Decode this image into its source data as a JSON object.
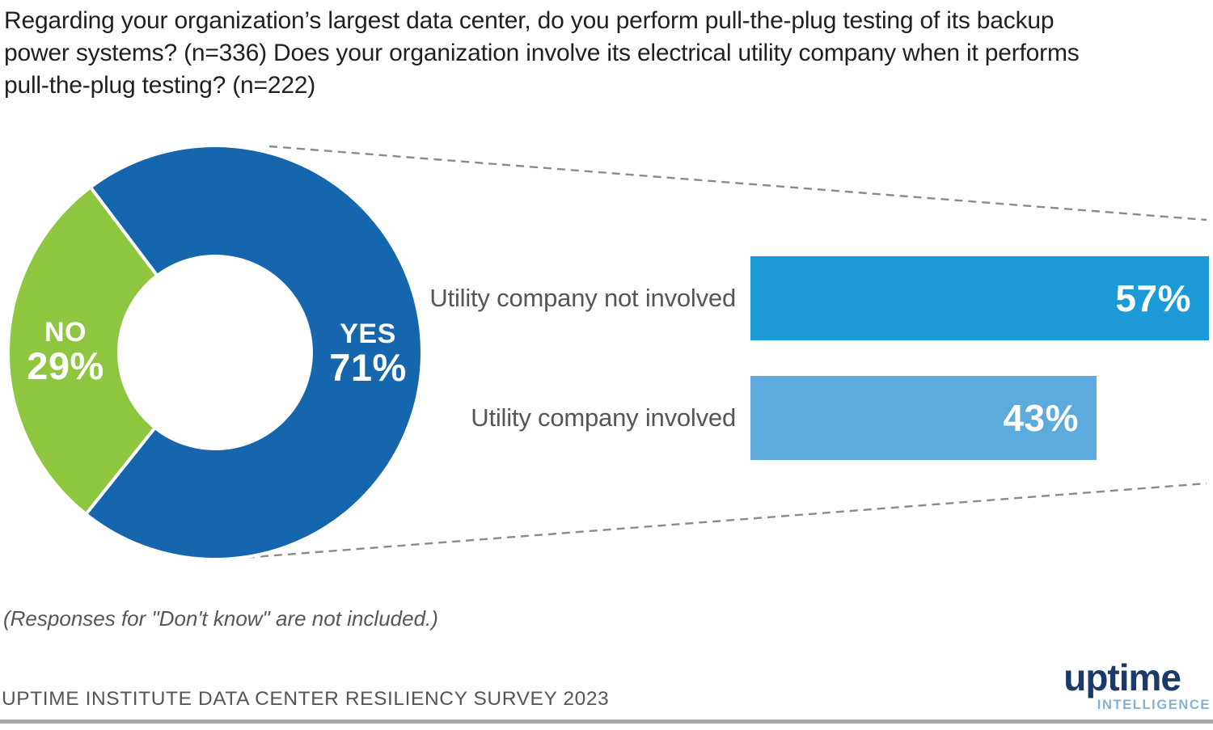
{
  "title": {
    "line1": "Regarding your organization’s largest data center, do you perform pull-the-plug testing of its backup",
    "line2": "power systems? (n=336) Does your organization involve its electrical utility company when it performs",
    "line3": "pull-the-plug testing? (n=222)"
  },
  "chart_data": [
    {
      "type": "pie",
      "subtype": "donut",
      "title": "Do you perform pull-the-plug testing of backup power systems?",
      "n_label": "n=336",
      "labels": [
        "YES",
        "NO"
      ],
      "values": [
        71,
        29
      ],
      "unit": "%",
      "colors": [
        "#1566ac",
        "#8ec640"
      ],
      "legend_position": "inside-slices"
    },
    {
      "type": "bar",
      "orientation": "horizontal",
      "title": "Does your organization involve its electrical utility company?",
      "n_label": "n=222",
      "categories": [
        "Utility company not involved",
        "Utility company involved"
      ],
      "values": [
        57,
        43
      ],
      "unit": "%",
      "colors": [
        "#1b9ad7",
        "#5daadd"
      ],
      "xlim": [
        0,
        57
      ],
      "grid": false,
      "value_labels": "inside-end"
    }
  ],
  "donut": {
    "yes_label": "YES",
    "yes_value": "71%",
    "no_label": "NO",
    "no_value": "29%"
  },
  "bars": [
    {
      "label": "Utility company not involved",
      "value": "57%"
    },
    {
      "label": "Utility company involved",
      "value": "43%"
    }
  ],
  "footnote": "(Responses for \"Don't know\" are not included.)",
  "source": "UPTIME INSTITUTE DATA CENTER RESILIENCY SURVEY 2023",
  "logo": {
    "brand": "uptime",
    "sub": "INTELLIGENCE"
  },
  "colors": {
    "donut_yes": "#1566ac",
    "donut_no": "#8ec640",
    "bar_not_involved": "#1b9ad7",
    "bar_involved": "#5daadd",
    "text_dark": "#231f20",
    "text_gray": "#55565a",
    "dash_line": "#8a8b8d",
    "bottom_rule": "#a8a8ac",
    "logo_navy": "#1b3a6b",
    "logo_lightblue": "#7fb2d6"
  }
}
